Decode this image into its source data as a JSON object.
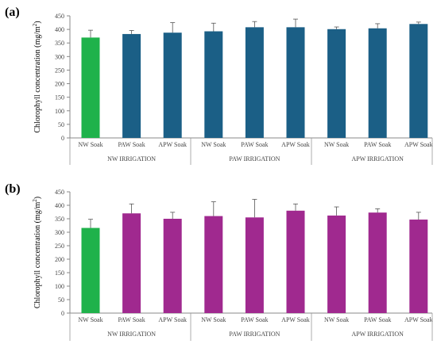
{
  "chart_data": [
    {
      "type": "bar",
      "panel_label": "(a)",
      "ylabel": "Chlorophyll  concentration  (mg/m",
      "ylabel_sup": "2",
      "ylabel_close": ")",
      "ylim": [
        0,
        450
      ],
      "yticks": [
        0,
        50,
        100,
        150,
        200,
        250,
        300,
        350,
        400,
        450
      ],
      "grid": false,
      "categories": [
        "NW Soak",
        "PAW Soak",
        "APW Soak",
        "NW Soak",
        "PAW Soak",
        "APW Soak",
        "NW Soak",
        "PAW Soak",
        "APW Soak"
      ],
      "groups": [
        "NW IRRIGATION",
        "PAW IRRIGATION",
        "APW IRRIGATION"
      ],
      "values": [
        370,
        383,
        388,
        393,
        408,
        408,
        401,
        404,
        420
      ],
      "errors": [
        27,
        13,
        37,
        30,
        21,
        30,
        8,
        17,
        7
      ],
      "colors": [
        "#1fb24b",
        "#1b5f86",
        "#1b5f86",
        "#1b5f86",
        "#1b5f86",
        "#1b5f86",
        "#1b5f86",
        "#1b5f86",
        "#1b5f86"
      ]
    },
    {
      "type": "bar",
      "panel_label": "(b)",
      "ylabel": "Chlorophyll  concentration  (mg/m",
      "ylabel_sup": "2",
      "ylabel_close": ")",
      "ylim": [
        0,
        450
      ],
      "yticks": [
        0,
        50,
        100,
        150,
        200,
        250,
        300,
        350,
        400,
        450
      ],
      "grid": false,
      "categories": [
        "NW Soak",
        "PAW Soak",
        "APW Soak",
        "NW Soak",
        "PAW Soak",
        "APW Soak",
        "NW Soak",
        "PAW Soak",
        "APW Soak"
      ],
      "groups": [
        "NW IRRIGATION",
        "PAW IRRIGATION",
        "APW IRRIGATION"
      ],
      "values": [
        316,
        370,
        350,
        360,
        355,
        380,
        362,
        373,
        347
      ],
      "errors": [
        32,
        35,
        24,
        53,
        67,
        25,
        32,
        14,
        27
      ],
      "colors": [
        "#1fb24b",
        "#a0298f",
        "#a0298f",
        "#a0298f",
        "#a0298f",
        "#a0298f",
        "#a0298f",
        "#a0298f",
        "#a0298f"
      ]
    }
  ]
}
